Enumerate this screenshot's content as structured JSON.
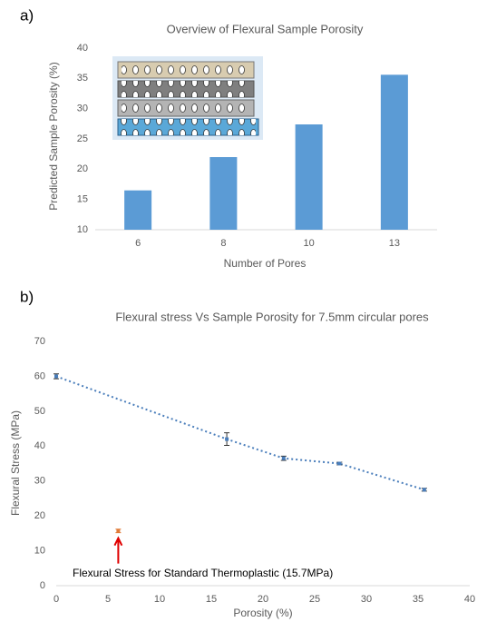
{
  "chart_data": [
    {
      "type": "bar",
      "panel": "a)",
      "title": "Overview of Flexural Sample Porosity",
      "x_label": "Number of Pores",
      "y_label": "Predicted Sample Porosity (%)",
      "categories": [
        "6",
        "8",
        "10",
        "13"
      ],
      "values": [
        16.5,
        22,
        27.4,
        35.6
      ],
      "color": "#5b9bd5",
      "ylim": [
        10,
        40
      ],
      "yticks": [
        10,
        15,
        20,
        25,
        30,
        35,
        40
      ],
      "grid": false
    },
    {
      "type": "scatter",
      "panel": "b)",
      "title": "Flexural stress Vs Sample Porosity for 7.5mm circular pores",
      "x_label": "Porosity (%)",
      "y_label": "Flexural Stress (MPa)",
      "series": [
        {
          "x": [
            0,
            16.5,
            22,
            27.4,
            35.6
          ],
          "values": [
            60,
            42,
            36.5,
            35,
            27.5
          ],
          "errors": [
            0.7,
            1.8,
            0.6,
            0.4,
            0.4
          ],
          "color": "#4a7ebb",
          "trendline": true
        },
        {
          "x": [
            6
          ],
          "values": [
            15.7
          ],
          "errors": [
            0.5
          ],
          "color": "#e07b39",
          "trendline": false
        }
      ],
      "annotation": "Flexural Stress for Standard Thermoplastic (15.7MPa)",
      "xlim": [
        0,
        40
      ],
      "xticks": [
        0,
        5,
        10,
        15,
        20,
        25,
        30,
        35,
        40
      ],
      "ylim": [
        0,
        70
      ],
      "yticks": [
        0,
        10,
        20,
        30,
        40,
        50,
        60,
        70
      ],
      "grid": false
    }
  ]
}
